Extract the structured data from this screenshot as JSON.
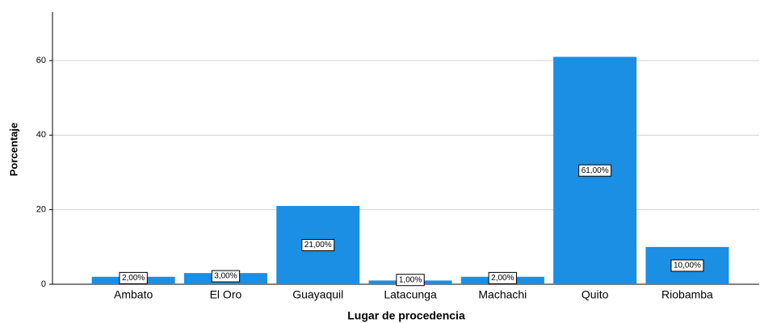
{
  "chart_data": {
    "type": "bar",
    "x_label": "Lugar de procedencia",
    "y_label": "Porcentaje",
    "categories": [
      "Ambato",
      "El Oro",
      "Guayaquil",
      "Latacunga",
      "Machachi",
      "Quito",
      "Riobamba"
    ],
    "values": [
      2,
      3,
      21,
      1,
      2,
      61,
      10
    ],
    "value_labels": [
      "2,00%",
      "3,00%",
      "21,00%",
      "1,00%",
      "2,00%",
      "61,00%",
      "10,00%"
    ],
    "color": "#1a8fe3",
    "ylim": [
      0,
      73
    ],
    "yticks": [
      0,
      20,
      40,
      60
    ],
    "grid": true
  }
}
